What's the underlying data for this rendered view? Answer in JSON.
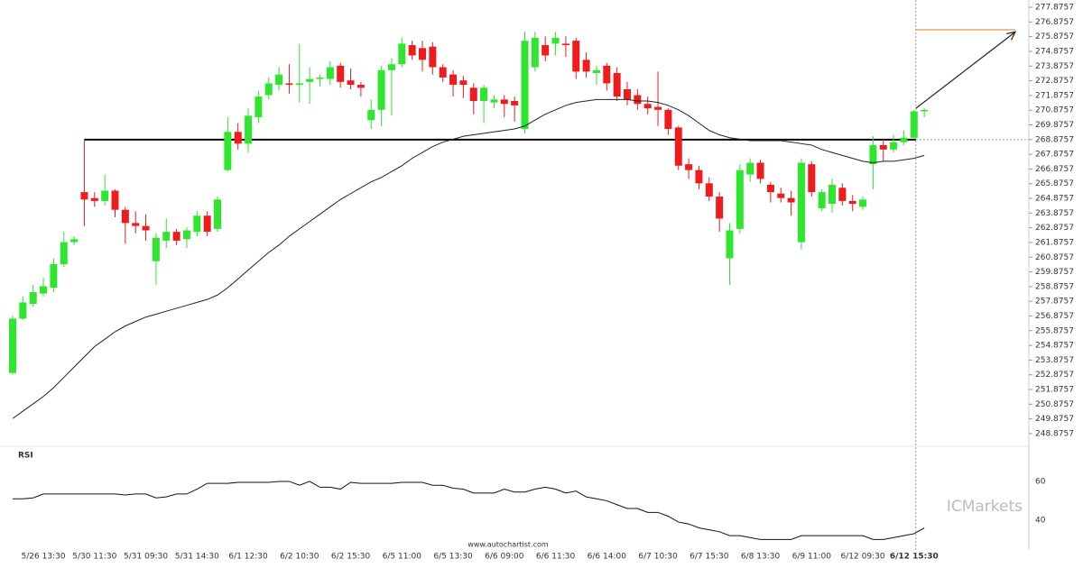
{
  "chart_data": {
    "type": "candlestick",
    "x": [
      null,
      null,
      null,
      "5/26 13:30",
      null,
      null,
      null,
      null,
      "5/30 11:30",
      null,
      null,
      null,
      null,
      "5/31 09:30",
      null,
      null,
      null,
      null,
      "5/31 14:30",
      null,
      null,
      null,
      null,
      "6/1 12:30",
      null,
      null,
      null,
      null,
      "6/2 10:30",
      null,
      null,
      null,
      null,
      "6/2 15:30",
      null,
      null,
      null,
      null,
      "6/5 11:00",
      null,
      null,
      null,
      null,
      "6/5 13:30",
      null,
      null,
      null,
      null,
      "6/6 09:00",
      null,
      null,
      null,
      null,
      "6/6 11:30",
      null,
      null,
      null,
      null,
      "6/6 14:00",
      null,
      null,
      null,
      null,
      "6/7 10:30",
      null,
      null,
      null,
      null,
      "6/7 15:30",
      null,
      null,
      null,
      null,
      "6/8 13:30",
      null,
      null,
      null,
      null,
      "6/9 11:00",
      null,
      null,
      null,
      null,
      "6/12 09:30",
      null,
      null,
      null,
      null,
      "6/12 15:30",
      null
    ],
    "open": [
      253.0,
      256.7,
      257.7,
      258.4,
      258.8,
      260.4,
      261.9,
      265.3,
      264.9,
      264.7,
      265.4,
      264.1,
      263.2,
      263.0,
      260.6,
      262.0,
      262.6,
      262.1,
      262.6,
      263.7,
      262.8,
      266.8,
      269.4,
      268.6,
      270.4,
      271.9,
      272.6,
      272.7,
      272.6,
      272.8,
      273.0,
      273.0,
      273.9,
      272.9,
      272.6,
      270.2,
      270.9,
      273.6,
      274.0,
      275.3,
      275.1,
      275.2,
      273.8,
      273.3,
      272.9,
      272.4,
      271.5,
      271.4,
      271.6,
      271.5,
      269.6,
      273.8,
      275.3,
      275.4,
      275.4,
      275.6,
      274.3,
      273.4,
      273.9,
      273.4,
      272.3,
      271.9,
      271.3,
      271.1,
      270.9,
      269.7,
      267.2,
      266.8,
      265.9,
      265.0,
      260.8,
      262.8,
      266.5,
      267.3,
      265.8,
      265.2,
      264.9,
      261.9,
      267.2,
      264.2,
      264.5,
      265.6,
      264.7,
      264.3,
      267.2,
      268.5,
      268.2,
      268.7,
      269.0,
      270.8
    ],
    "high": [
      256.9,
      258.2,
      259.0,
      259.5,
      260.8,
      262.6,
      262.3,
      268.9,
      265.3,
      266.5,
      265.5,
      264.3,
      264.0,
      263.8,
      262.5,
      263.5,
      262.8,
      262.9,
      264.0,
      264.0,
      265.0,
      270.4,
      270.0,
      271.0,
      272.2,
      273.1,
      273.8,
      274.0,
      275.4,
      273.8,
      273.3,
      274.2,
      274.1,
      273.7,
      272.8,
      271.6,
      273.9,
      274.4,
      275.8,
      275.6,
      275.6,
      275.5,
      274.0,
      273.6,
      273.2,
      272.7,
      272.6,
      271.9,
      271.9,
      271.8,
      276.2,
      276.2,
      275.9,
      276.2,
      275.9,
      275.8,
      274.8,
      273.9,
      274.1,
      273.8,
      272.8,
      272.3,
      271.8,
      273.5,
      271.0,
      269.8,
      267.6,
      267.1,
      266.3,
      265.3,
      263.2,
      267.2,
      267.6,
      267.5,
      266.0,
      265.6,
      265.4,
      267.6,
      267.4,
      265.5,
      266.2,
      265.9,
      265.1,
      265.0,
      269.1,
      268.9,
      269.2,
      269.5,
      270.9,
      271.0
    ],
    "low": [
      252.9,
      256.6,
      257.5,
      258.2,
      258.5,
      260.2,
      261.7,
      263.0,
      264.3,
      264.4,
      263.6,
      261.8,
      262.5,
      262.0,
      259.0,
      261.5,
      261.7,
      261.5,
      262.3,
      262.3,
      262.6,
      266.7,
      268.2,
      268.0,
      270.0,
      271.6,
      272.2,
      272.0,
      271.4,
      271.3,
      272.5,
      272.6,
      272.4,
      272.3,
      271.8,
      269.6,
      269.8,
      270.5,
      273.8,
      274.3,
      273.5,
      273.3,
      272.8,
      271.8,
      271.7,
      270.6,
      270.0,
      271.0,
      270.4,
      270.1,
      269.3,
      273.5,
      274.2,
      274.6,
      274.5,
      273.0,
      273.1,
      272.6,
      272.2,
      271.5,
      271.2,
      270.9,
      270.6,
      269.8,
      269.2,
      266.8,
      266.2,
      265.5,
      264.7,
      262.6,
      259.0,
      262.5,
      266.0,
      265.9,
      264.6,
      264.6,
      263.7,
      261.4,
      265.0,
      264.0,
      263.9,
      264.4,
      264.0,
      264.1,
      265.5,
      267.4,
      268.0,
      268.5,
      268.9,
      270.4
    ],
    "close": [
      256.7,
      257.8,
      258.5,
      258.9,
      260.4,
      261.9,
      262.1,
      264.8,
      264.7,
      265.4,
      264.1,
      263.2,
      263.0,
      262.7,
      262.2,
      262.6,
      262.0,
      262.7,
      263.7,
      262.6,
      264.8,
      269.4,
      268.6,
      270.5,
      271.8,
      272.7,
      273.3,
      272.6,
      272.7,
      273.0,
      273.1,
      273.8,
      272.8,
      272.6,
      272.4,
      270.9,
      273.6,
      274.0,
      275.4,
      274.6,
      274.3,
      273.8,
      273.1,
      272.6,
      272.6,
      271.5,
      272.4,
      271.6,
      271.3,
      271.2,
      275.6,
      275.8,
      274.6,
      275.8,
      275.3,
      273.5,
      273.5,
      273.6,
      272.7,
      271.8,
      271.6,
      271.3,
      271.0,
      270.9,
      269.6,
      267.1,
      266.8,
      265.9,
      265.0,
      263.5,
      262.7,
      266.8,
      267.3,
      266.2,
      265.3,
      264.9,
      264.6,
      267.3,
      265.3,
      265.3,
      265.8,
      264.7,
      264.5,
      264.8,
      268.5,
      268.2,
      268.7,
      269.0,
      270.8,
      270.9
    ],
    "up_color": "#2ee62e",
    "down_color": "#ee1c1c",
    "ma": {
      "color": "#222222",
      "values": [
        249.9,
        250.4,
        250.9,
        251.4,
        252.0,
        252.7,
        253.4,
        254.1,
        254.8,
        255.3,
        255.8,
        256.2,
        256.5,
        256.8,
        257.0,
        257.2,
        257.4,
        257.6,
        257.8,
        258.0,
        258.3,
        258.8,
        259.4,
        260.0,
        260.6,
        261.2,
        261.7,
        262.3,
        262.8,
        263.3,
        263.8,
        264.3,
        264.8,
        265.2,
        265.6,
        266.0,
        266.3,
        266.7,
        267.1,
        267.6,
        268.0,
        268.4,
        268.7,
        268.9,
        269.1,
        269.2,
        269.3,
        269.4,
        269.5,
        269.6,
        269.8,
        270.2,
        270.6,
        270.9,
        271.2,
        271.4,
        271.5,
        271.6,
        271.6,
        271.6,
        271.6,
        271.5,
        271.5,
        271.4,
        271.2,
        270.9,
        270.5,
        270.0,
        269.5,
        269.2,
        269.0,
        268.9,
        268.8,
        268.8,
        268.8,
        268.8,
        268.7,
        268.6,
        268.5,
        268.2,
        268.0,
        267.8,
        267.6,
        267.4,
        267.3,
        267.4,
        267.4,
        267.5,
        267.6,
        267.8
      ]
    },
    "level": 268.8757,
    "target": 276.35,
    "arrow": [
      271.0,
      276.2
    ],
    "target_color": "#e07b1a",
    "ylim": [
      248.32,
      278.37
    ],
    "yticks": [
      248.8757,
      249.8757,
      250.8757,
      251.8757,
      252.8757,
      253.8757,
      254.8757,
      255.8757,
      256.8757,
      257.8757,
      258.8757,
      259.8757,
      260.8757,
      261.8757,
      262.8757,
      263.8757,
      264.8757,
      265.8757,
      266.8757,
      267.8757,
      268.8757,
      269.8757,
      270.8757,
      271.8757,
      272.8757,
      273.8757,
      274.8757,
      275.8757,
      276.8757,
      277.8757
    ],
    "rsi": {
      "title": "RSI",
      "values": [
        51,
        51,
        51.5,
        53.5,
        53.5,
        53.5,
        53.5,
        53.5,
        53.5,
        53.5,
        53.5,
        53,
        53.5,
        53.5,
        51.5,
        52,
        53.5,
        53.5,
        56,
        59,
        59,
        59,
        59.5,
        59.5,
        59.5,
        59.5,
        60,
        60,
        58,
        60,
        57,
        57,
        56,
        59.5,
        59,
        59,
        59,
        59,
        59.5,
        59.5,
        59.5,
        58,
        58,
        56.5,
        56,
        54,
        54,
        54,
        56,
        54.5,
        54.5,
        56,
        57,
        56,
        54,
        55,
        52,
        51,
        50,
        48,
        46,
        46,
        44,
        44,
        42,
        39,
        38,
        36,
        35,
        34,
        32,
        32,
        31,
        30,
        30,
        30,
        30,
        32,
        32,
        32,
        32,
        32,
        32,
        32,
        30,
        30,
        31,
        32,
        33,
        36
      ],
      "ylim": [
        24.6,
        75.8
      ],
      "yticks": [
        40,
        60
      ]
    },
    "source": "www.autochartist.com",
    "watermark": "ICMarkets"
  }
}
